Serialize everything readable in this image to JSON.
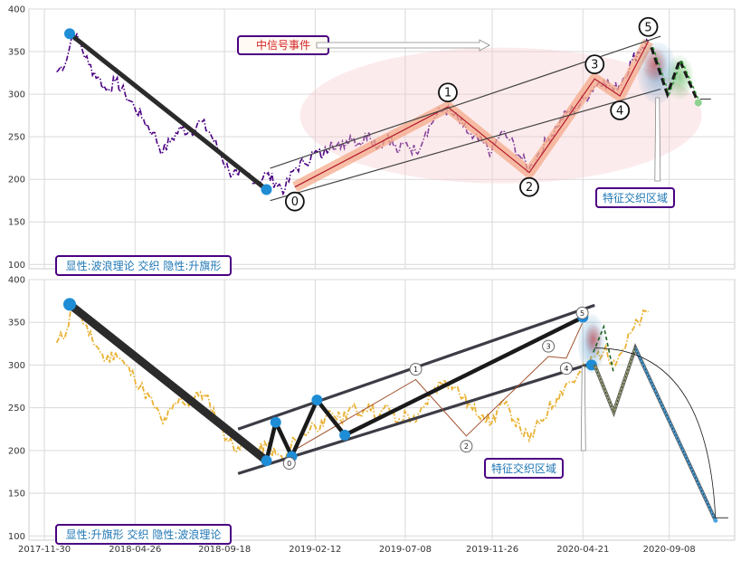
{
  "chart_data": [
    {
      "type": "line",
      "panel": "top",
      "title": "",
      "xlabel": "",
      "ylabel": "",
      "ylim": [
        95,
        400
      ],
      "yticks": [
        100,
        150,
        200,
        250,
        300,
        350,
        400
      ],
      "xlim": [
        "2017-11-05",
        "2020-12-23"
      ],
      "grid": true,
      "price_color": "#4b0082",
      "price_series": [
        [
          "2017-12-20",
          326
        ],
        [
          "2018-01-05",
          340
        ],
        [
          "2018-01-15",
          372
        ],
        [
          "2018-01-25",
          362
        ],
        [
          "2018-02-10",
          335
        ],
        [
          "2018-02-25",
          320
        ],
        [
          "2018-03-10",
          305
        ],
        [
          "2018-03-25",
          315
        ],
        [
          "2018-04-10",
          300
        ],
        [
          "2018-04-25",
          285
        ],
        [
          "2018-05-10",
          270
        ],
        [
          "2018-05-25",
          255
        ],
        [
          "2018-06-10",
          232
        ],
        [
          "2018-06-25",
          248
        ],
        [
          "2018-07-10",
          260
        ],
        [
          "2018-07-25",
          256
        ],
        [
          "2018-08-10",
          268
        ],
        [
          "2018-08-25",
          255
        ],
        [
          "2018-09-10",
          232
        ],
        [
          "2018-09-25",
          210
        ],
        [
          "2018-10-10",
          204
        ],
        [
          "2018-10-25",
          206
        ],
        [
          "2018-11-10",
          198
        ],
        [
          "2018-11-25",
          206
        ],
        [
          "2018-12-10",
          196
        ],
        [
          "2018-12-25",
          188
        ],
        [
          "2019-01-10",
          213
        ],
        [
          "2019-01-25",
          219
        ],
        [
          "2019-02-10",
          231
        ],
        [
          "2019-02-25",
          228
        ],
        [
          "2019-03-10",
          245
        ],
        [
          "2019-03-25",
          236
        ],
        [
          "2019-04-10",
          251
        ],
        [
          "2019-04-25",
          242
        ],
        [
          "2019-05-10",
          255
        ],
        [
          "2019-05-25",
          238
        ],
        [
          "2019-06-10",
          252
        ],
        [
          "2019-06-25",
          232
        ],
        [
          "2019-07-10",
          243
        ],
        [
          "2019-07-25",
          232
        ],
        [
          "2019-08-10",
          255
        ],
        [
          "2019-08-25",
          273
        ],
        [
          "2019-09-10",
          283
        ],
        [
          "2019-09-25",
          275
        ],
        [
          "2019-10-10",
          262
        ],
        [
          "2019-10-25",
          248
        ],
        [
          "2019-11-10",
          243
        ],
        [
          "2019-11-25",
          232
        ],
        [
          "2019-12-10",
          255
        ],
        [
          "2019-12-25",
          246
        ],
        [
          "2020-01-10",
          227
        ],
        [
          "2020-01-25",
          212
        ],
        [
          "2020-02-10",
          231
        ],
        [
          "2020-02-25",
          248
        ],
        [
          "2020-03-10",
          262
        ],
        [
          "2020-03-25",
          278
        ],
        [
          "2020-04-10",
          284
        ],
        [
          "2020-04-25",
          296
        ],
        [
          "2020-05-10",
          310
        ],
        [
          "2020-05-25",
          317
        ],
        [
          "2020-06-10",
          305
        ],
        [
          "2020-06-25",
          318
        ],
        [
          "2020-07-10",
          340
        ],
        [
          "2020-07-25",
          355
        ],
        [
          "2020-08-05",
          362
        ]
      ],
      "overlays": {
        "flag_pole": [
          [
            "2018-01-10",
            371
          ],
          [
            "2018-11-25",
            188
          ]
        ],
        "channel_upper": [
          [
            "2018-12-01",
            213
          ],
          [
            "2020-08-25",
            368
          ]
        ],
        "channel_lower": [
          [
            "2018-12-01",
            175
          ],
          [
            "2020-08-25",
            306
          ]
        ],
        "waves": [
          {
            "label": "0",
            "date": "2019-01-10",
            "value": 191
          },
          {
            "label": "1",
            "date": "2019-09-15",
            "value": 285
          },
          {
            "label": "2",
            "date": "2020-01-25",
            "value": 208
          },
          {
            "label": "3",
            "date": "2020-05-10",
            "value": 318
          },
          {
            "label": "4",
            "date": "2020-06-20",
            "value": 298
          },
          {
            "label": "5",
            "date": "2020-08-05",
            "value": 362
          }
        ],
        "forecast_path": [
          [
            "2020-08-10",
            355
          ],
          [
            "2020-09-05",
            300
          ],
          [
            "2020-09-25",
            340
          ],
          [
            "2020-10-25",
            290
          ]
        ]
      },
      "annotations": {
        "signal_event": "中信号事件",
        "feature_zone": "特征交织区域",
        "caption": "显性:波浪理论 交织 隐性:升旗形"
      }
    },
    {
      "type": "line",
      "panel": "bottom",
      "title": "",
      "xlabel": "",
      "ylabel": "",
      "ylim": [
        95,
        400
      ],
      "yticks": [
        100,
        150,
        200,
        250,
        300,
        350,
        400
      ],
      "xlim": [
        "2017-11-05",
        "2020-12-23"
      ],
      "xticks": [
        "2017-11-30",
        "2018-04-26",
        "2018-09-18",
        "2019-02-12",
        "2019-07-08",
        "2019-11-26",
        "2020-04-21",
        "2020-09-08"
      ],
      "grid": true,
      "price_color": "#e9b234",
      "overlays": {
        "flag_pole": [
          [
            "2018-01-10",
            371
          ],
          [
            "2018-11-25",
            188
          ]
        ],
        "flag_upper": [
          [
            "2018-10-10",
            225
          ],
          [
            "2020-05-10",
            370
          ]
        ],
        "flag_lower": [
          [
            "2018-10-10",
            173
          ],
          [
            "2020-05-10",
            303
          ]
        ],
        "flag_zigzag": [
          [
            "2018-11-25",
            188
          ],
          [
            "2018-12-10",
            233
          ],
          [
            "2019-01-05",
            193
          ],
          [
            "2019-02-15",
            259
          ],
          [
            "2019-04-01",
            218
          ],
          [
            "2020-04-21",
            356
          ]
        ],
        "wave_labels": [
          {
            "label": "0",
            "date": "2019-01-01",
            "value": 185
          },
          {
            "label": "1",
            "date": "2019-07-25",
            "value": 295
          },
          {
            "label": "2",
            "date": "2019-10-15",
            "value": 205
          },
          {
            "label": "3",
            "date": "2020-02-25",
            "value": 322
          },
          {
            "label": "4",
            "date": "2020-03-25",
            "value": 296
          },
          {
            "label": "5",
            "date": "2020-04-20",
            "value": 361
          }
        ],
        "projection": [
          [
            "2020-05-10",
            300
          ],
          [
            "2020-06-10",
            245
          ],
          [
            "2020-07-15",
            320
          ],
          [
            "2020-11-22",
            118
          ]
        ]
      },
      "annotations": {
        "feature_zone": "特征交织区域",
        "caption": "显性:升旗形 交织 隐性:波浪理论"
      }
    }
  ]
}
